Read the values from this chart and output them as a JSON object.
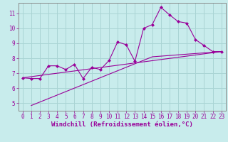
{
  "title": "",
  "xlabel": "Windchill (Refroidissement éolien,°C)",
  "ylabel": "",
  "background_color": "#c8ecec",
  "grid_color": "#aad4d4",
  "line_color": "#990099",
  "spine_color": "#888888",
  "xlim": [
    -0.5,
    23.5
  ],
  "ylim": [
    4.5,
    11.7
  ],
  "yticks": [
    5,
    6,
    7,
    8,
    9,
    10,
    11
  ],
  "xticks": [
    0,
    1,
    2,
    3,
    4,
    5,
    6,
    7,
    8,
    9,
    10,
    11,
    12,
    13,
    14,
    15,
    16,
    17,
    18,
    19,
    20,
    21,
    22,
    23
  ],
  "line1_x": [
    0,
    1,
    2,
    3,
    4,
    5,
    6,
    7,
    8,
    9,
    10,
    11,
    12,
    13,
    14,
    15,
    16,
    17,
    18,
    19,
    20,
    21,
    22,
    23
  ],
  "line1_y": [
    6.7,
    6.65,
    6.65,
    7.5,
    7.5,
    7.25,
    7.6,
    6.65,
    7.4,
    7.25,
    7.85,
    9.1,
    8.9,
    7.8,
    10.0,
    10.25,
    11.4,
    10.9,
    10.45,
    10.35,
    9.25,
    8.85,
    8.45,
    8.45
  ],
  "line2_x": [
    1,
    15,
    23
  ],
  "line2_y": [
    4.85,
    8.1,
    8.45
  ],
  "line3_x": [
    0,
    23
  ],
  "line3_y": [
    6.7,
    8.45
  ],
  "marker": "D",
  "marker_size": 2.5,
  "font_family": "monospace",
  "tick_fontsize": 5.5,
  "label_fontsize": 6.5
}
